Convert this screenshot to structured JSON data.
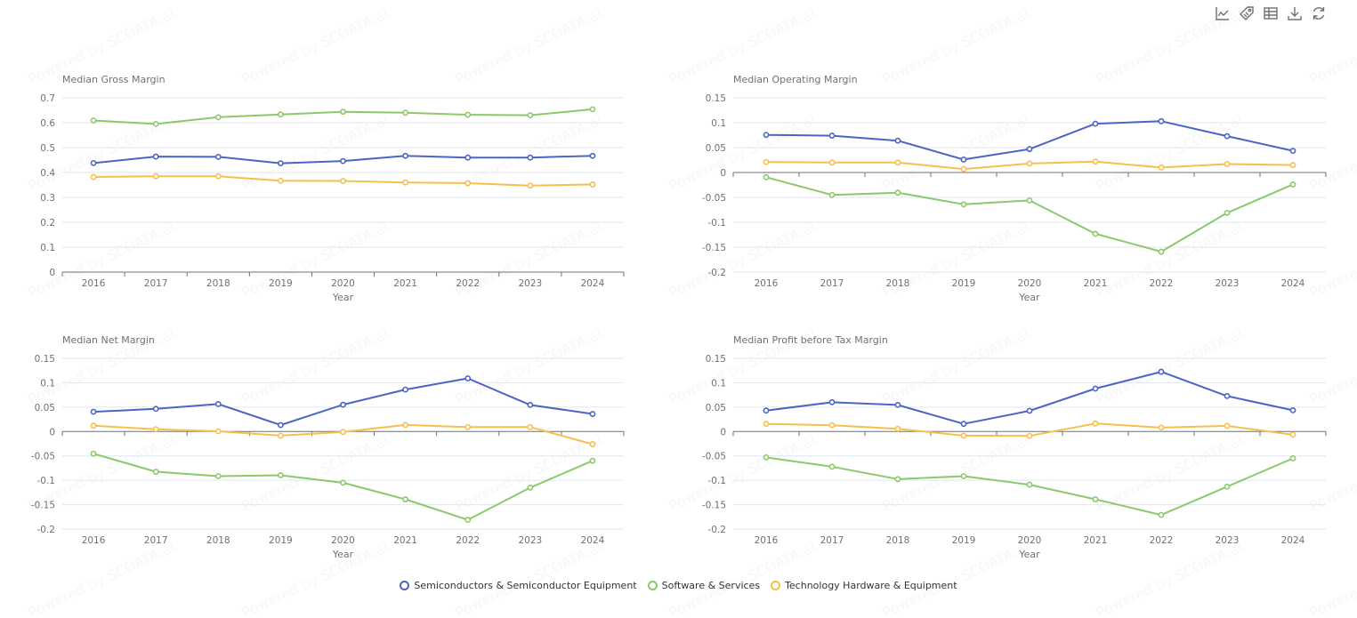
{
  "toolbar": {
    "items": [
      {
        "name": "line-chart-icon",
        "title": "Switch to line chart"
      },
      {
        "name": "tag-icon",
        "title": "Labels"
      },
      {
        "name": "data-view-icon",
        "title": "Data view"
      },
      {
        "name": "download-icon",
        "title": "Save as image"
      },
      {
        "name": "refresh-icon",
        "title": "Restore"
      }
    ]
  },
  "watermark": "Powered by SCDATA.ai",
  "colors": {
    "Semiconductors & Semiconductor Equipment": "#4a65c4",
    "Software & Services": "#8bc96a",
    "Technology Hardware & Equipment": "#f5c04d",
    "grid": "#e0e6f1",
    "axis": "#6e7079",
    "text": "#6e7079"
  },
  "legend": [
    {
      "label": "Semiconductors & Semiconductor Equipment",
      "color": "#4a65c4"
    },
    {
      "label": "Software & Services",
      "color": "#8bc96a"
    },
    {
      "label": "Technology Hardware & Equipment",
      "color": "#f5c04d"
    }
  ],
  "chart_data": [
    {
      "type": "line",
      "title": "Median Gross Margin",
      "xlabel": "Year",
      "ylabel": "",
      "categories": [
        "2016",
        "2017",
        "2018",
        "2019",
        "2020",
        "2021",
        "2022",
        "2023",
        "2024"
      ],
      "ylim": [
        0,
        0.7
      ],
      "yticks": [
        "0",
        "0.1",
        "0.2",
        "0.3",
        "0.4",
        "0.5",
        "0.6",
        "0.7"
      ],
      "ytick_values": [
        0,
        0.1,
        0.2,
        0.3,
        0.4,
        0.5,
        0.6,
        0.7
      ],
      "grid": true,
      "series": [
        {
          "name": "Semiconductors & Semiconductor Equipment",
          "values": [
            0.438,
            0.464,
            0.463,
            0.437,
            0.446,
            0.467,
            0.46,
            0.46,
            0.467
          ]
        },
        {
          "name": "Software & Services",
          "values": [
            0.609,
            0.595,
            0.622,
            0.633,
            0.644,
            0.64,
            0.632,
            0.63,
            0.654
          ]
        },
        {
          "name": "Technology Hardware & Equipment",
          "values": [
            0.382,
            0.385,
            0.385,
            0.367,
            0.366,
            0.36,
            0.357,
            0.347,
            0.352
          ]
        }
      ]
    },
    {
      "type": "line",
      "title": "Median Operating Margin",
      "xlabel": "Year",
      "ylabel": "",
      "categories": [
        "2016",
        "2017",
        "2018",
        "2019",
        "2020",
        "2021",
        "2022",
        "2023",
        "2024"
      ],
      "ylim": [
        -0.2,
        0.15
      ],
      "yticks": [
        "-0.2",
        "-0.15",
        "-0.1",
        "-0.05",
        "0",
        "0.05",
        "0.1",
        "0.15"
      ],
      "ytick_values": [
        -0.2,
        -0.15,
        -0.1,
        -0.05,
        0,
        0.05,
        0.1,
        0.15
      ],
      "grid": true,
      "series": [
        {
          "name": "Semiconductors & Semiconductor Equipment",
          "values": [
            0.0755,
            0.074,
            0.064,
            0.026,
            0.047,
            0.098,
            0.103,
            0.073,
            0.0435
          ]
        },
        {
          "name": "Software & Services",
          "values": [
            -0.0095,
            -0.045,
            -0.0405,
            -0.064,
            -0.056,
            -0.123,
            -0.159,
            -0.081,
            -0.024
          ]
        },
        {
          "name": "Technology Hardware & Equipment",
          "values": [
            0.021,
            0.02,
            0.02,
            0.007,
            0.018,
            0.022,
            0.01,
            0.017,
            0.015
          ]
        }
      ]
    },
    {
      "type": "line",
      "title": "Median Net Margin",
      "xlabel": "Year",
      "ylabel": "",
      "categories": [
        "2016",
        "2017",
        "2018",
        "2019",
        "2020",
        "2021",
        "2022",
        "2023",
        "2024"
      ],
      "ylim": [
        -0.2,
        0.15
      ],
      "yticks": [
        "-0.2",
        "-0.15",
        "-0.1",
        "-0.05",
        "0",
        "0.05",
        "0.1",
        "0.15"
      ],
      "ytick_values": [
        -0.2,
        -0.15,
        -0.1,
        -0.05,
        0,
        0.05,
        0.1,
        0.15
      ],
      "grid": true,
      "series": [
        {
          "name": "Semiconductors & Semiconductor Equipment",
          "values": [
            0.0405,
            0.0465,
            0.0563,
            0.0133,
            0.055,
            0.086,
            0.109,
            0.0545,
            0.036
          ]
        },
        {
          "name": "Software & Services",
          "values": [
            -0.0455,
            -0.0825,
            -0.0915,
            -0.0897,
            -0.105,
            -0.139,
            -0.181,
            -0.115,
            -0.06
          ]
        },
        {
          "name": "Technology Hardware & Equipment",
          "values": [
            0.012,
            0.0047,
            0.0005,
            -0.0085,
            -0.001,
            0.0134,
            0.009,
            0.009,
            -0.026
          ]
        }
      ]
    },
    {
      "type": "line",
      "title": "Median Profit before Tax Margin",
      "xlabel": "Year",
      "ylabel": "",
      "categories": [
        "2016",
        "2017",
        "2018",
        "2019",
        "2020",
        "2021",
        "2022",
        "2023",
        "2024"
      ],
      "ylim": [
        -0.2,
        0.15
      ],
      "yticks": [
        "-0.2",
        "-0.15",
        "-0.1",
        "-0.05",
        "0",
        "0.05",
        "0.1",
        "0.15"
      ],
      "ytick_values": [
        -0.2,
        -0.15,
        -0.1,
        -0.05,
        0,
        0.05,
        0.1,
        0.15
      ],
      "grid": true,
      "series": [
        {
          "name": "Semiconductors & Semiconductor Equipment",
          "values": [
            0.043,
            0.06,
            0.0545,
            0.0157,
            0.0425,
            0.088,
            0.1225,
            0.0727,
            0.0436
          ]
        },
        {
          "name": "Software & Services",
          "values": [
            -0.053,
            -0.072,
            -0.0976,
            -0.0915,
            -0.109,
            -0.139,
            -0.171,
            -0.113,
            -0.055
          ]
        },
        {
          "name": "Technology Hardware & Equipment",
          "values": [
            0.0157,
            0.013,
            0.0055,
            -0.0085,
            -0.009,
            0.0164,
            0.008,
            0.0116,
            -0.0065
          ]
        }
      ]
    }
  ]
}
